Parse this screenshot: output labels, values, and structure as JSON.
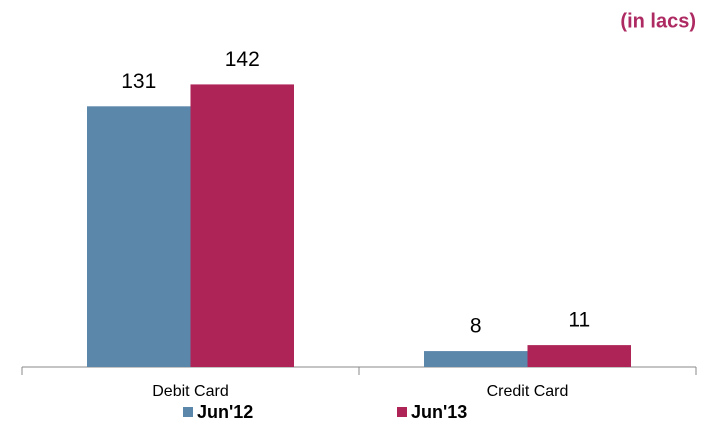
{
  "chart_data": {
    "type": "bar",
    "subtitle": "(in lacs)",
    "categories": [
      "Debit Card",
      "Credit Card"
    ],
    "series": [
      {
        "name": "Jun'12",
        "color": "#5b87ab",
        "values": [
          131,
          8
        ]
      },
      {
        "name": "Jun'13",
        "color": "#ae2457",
        "values": [
          142,
          11
        ]
      }
    ]
  }
}
